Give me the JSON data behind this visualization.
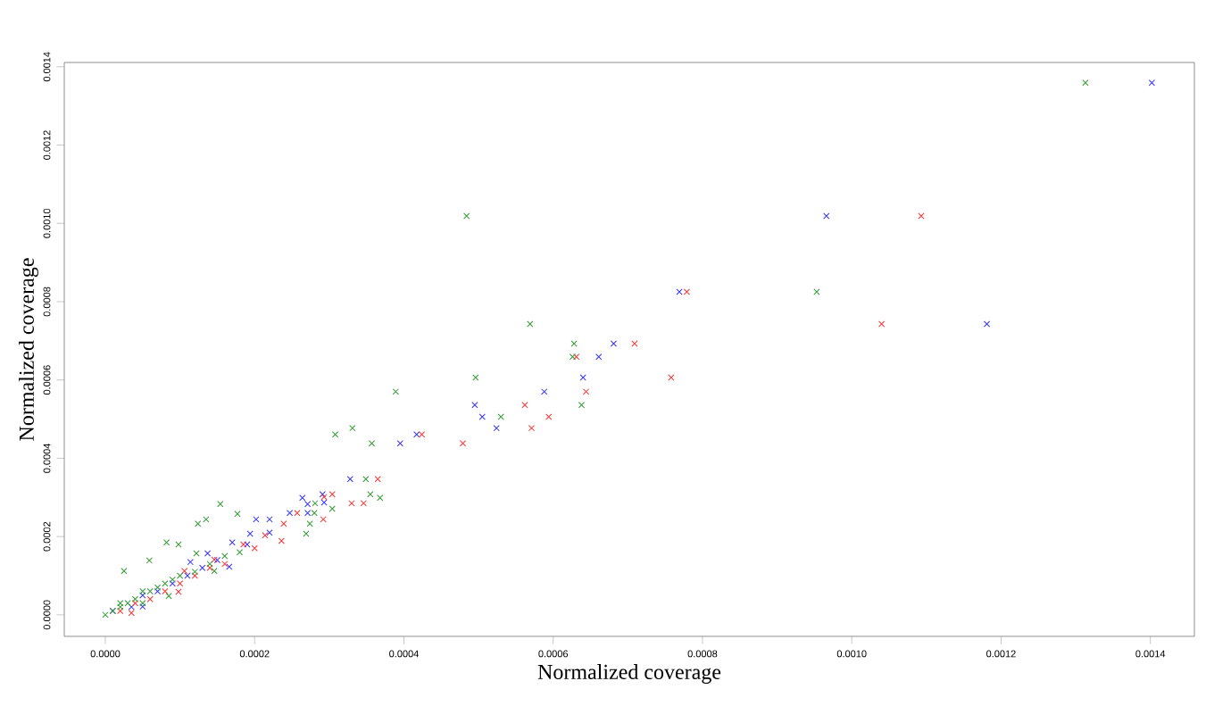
{
  "chart_data": {
    "type": "scatter",
    "xlabel": "Normalized coverage",
    "ylabel": "Normalized coverage",
    "marker": "cross",
    "grid": false,
    "xlim": [
      -5.5e-05,
      0.001459
    ],
    "ylim": [
      -5.5e-05,
      0.001411
    ],
    "xticks": [
      {
        "value": 0,
        "label": "0.0000"
      },
      {
        "value": 0.0002,
        "label": "0.0002"
      },
      {
        "value": 0.0004,
        "label": "0.0004"
      },
      {
        "value": 0.0006,
        "label": "0.0006"
      },
      {
        "value": 0.0008,
        "label": "0.0008"
      },
      {
        "value": 0.001,
        "label": "0.0010"
      },
      {
        "value": 0.0012,
        "label": "0.0012"
      },
      {
        "value": 0.0014,
        "label": "0.0014"
      }
    ],
    "yticks": [
      {
        "value": 0,
        "label": "0.0000"
      },
      {
        "value": 0.0002,
        "label": "0.0002"
      },
      {
        "value": 0.0004,
        "label": "0.0004"
      },
      {
        "value": 0.0006,
        "label": "0.0006"
      },
      {
        "value": 0.0008,
        "label": "0.0008"
      },
      {
        "value": 0.001,
        "label": "0.0010"
      },
      {
        "value": 0.0012,
        "label": "0.0012"
      },
      {
        "value": 0.0014,
        "label": "0.0014"
      }
    ],
    "series": [
      {
        "color": "#3333ff",
        "x": [
          0.001402,
          0.000966,
          0.000769,
          0.001181,
          0.000681,
          0.000661,
          0.00064,
          0.000588,
          0.000495,
          0.000505,
          0.000524,
          0.000417,
          0.000395,
          0.000328,
          0.000291,
          0.000264,
          0.000271,
          0.000293,
          0.000247,
          0.000271,
          0.000202,
          0.00022,
          0.000194,
          0.00017,
          0.000166,
          0.000114,
          0.000137,
          5e-05,
          1e-05,
          3.5e-05,
          5e-05,
          7e-05,
          9e-05,
          0.00011,
          0.00013,
          0.00015,
          0.00019,
          0.00022
        ],
        "values": [
          0.001359,
          0.001019,
          0.000825,
          0.000743,
          0.000693,
          0.000659,
          0.000606,
          0.00057,
          0.000536,
          0.000506,
          0.000477,
          0.000461,
          0.000438,
          0.000347,
          0.000308,
          0.000299,
          0.000283,
          0.000287,
          0.00026,
          0.00026,
          0.000244,
          0.000244,
          0.000207,
          0.000185,
          0.000123,
          0.000135,
          0.000157,
          2.1e-05,
          1e-05,
          2e-05,
          5e-05,
          6e-05,
          8e-05,
          0.0001,
          0.00012,
          0.00014,
          0.00018,
          0.00021
        ]
      },
      {
        "color": "#ff3333",
        "x": [
          0.001093,
          0.000779,
          0.00104,
          0.000709,
          0.000631,
          0.000758,
          0.000644,
          0.000562,
          0.000594,
          0.000571,
          0.000424,
          0.000479,
          0.000365,
          0.000304,
          0.00033,
          0.000346,
          0.000293,
          0.000292,
          0.000257,
          0.000239,
          0.000236,
          0.000214,
          0.000185,
          0.000146,
          0.000106,
          9.8e-05,
          3.5e-05,
          2e-05,
          4e-05,
          6e-05,
          8e-05,
          0.0001,
          0.00012,
          0.00014,
          0.00016,
          0.0002
        ],
        "values": [
          0.001019,
          0.000825,
          0.000743,
          0.000693,
          0.000659,
          0.000606,
          0.00057,
          0.000536,
          0.000506,
          0.000477,
          0.000461,
          0.000438,
          0.000347,
          0.000308,
          0.000285,
          0.000285,
          0.000301,
          0.000244,
          0.00026,
          0.000233,
          0.000189,
          0.000203,
          0.00018,
          0.000141,
          0.000112,
          5.9e-05,
          5e-06,
          1e-05,
          3e-05,
          4e-05,
          6e-05,
          8e-05,
          0.0001,
          0.00012,
          0.00013,
          0.00017
        ]
      },
      {
        "color": "#339933",
        "x": [
          0.001313,
          0.000484,
          0.000953,
          0.000569,
          0.000628,
          0.000626,
          0.000496,
          0.000389,
          0.000638,
          0.00053,
          0.000308,
          0.000331,
          0.000357,
          0.000349,
          0.000355,
          0.000368,
          0.000304,
          0.000281,
          0.00028,
          0.000269,
          0.000274,
          0.000154,
          0.000177,
          0.000124,
          0.000135,
          8.2e-05,
          9.8e-05,
          2.5e-05,
          5.9e-05,
          0.000122,
          0.000146,
          8.5e-05,
          0,
          1e-05,
          2e-05,
          3e-05,
          4e-05,
          5e-05,
          6e-05,
          7e-05,
          8e-05,
          9e-05,
          0.0001,
          0.00012,
          0.00014,
          0.00016,
          0.00018,
          5e-05,
          2e-05
        ],
        "values": [
          0.001359,
          0.001019,
          0.000825,
          0.000743,
          0.000693,
          0.000659,
          0.000606,
          0.00057,
          0.000536,
          0.000506,
          0.000461,
          0.000477,
          0.000438,
          0.000347,
          0.000308,
          0.000299,
          0.000271,
          0.000285,
          0.00026,
          0.000207,
          0.000233,
          0.000283,
          0.000258,
          0.000233,
          0.000244,
          0.000185,
          0.00018,
          0.000112,
          0.000139,
          0.000157,
          0.000112,
          4.8e-05,
          0,
          1e-05,
          3e-05,
          3e-05,
          4e-05,
          6e-05,
          6e-05,
          7e-05,
          8e-05,
          9e-05,
          0.0001,
          0.00011,
          0.00013,
          0.00015,
          0.00016,
          3e-05,
          2e-05
        ]
      }
    ]
  }
}
